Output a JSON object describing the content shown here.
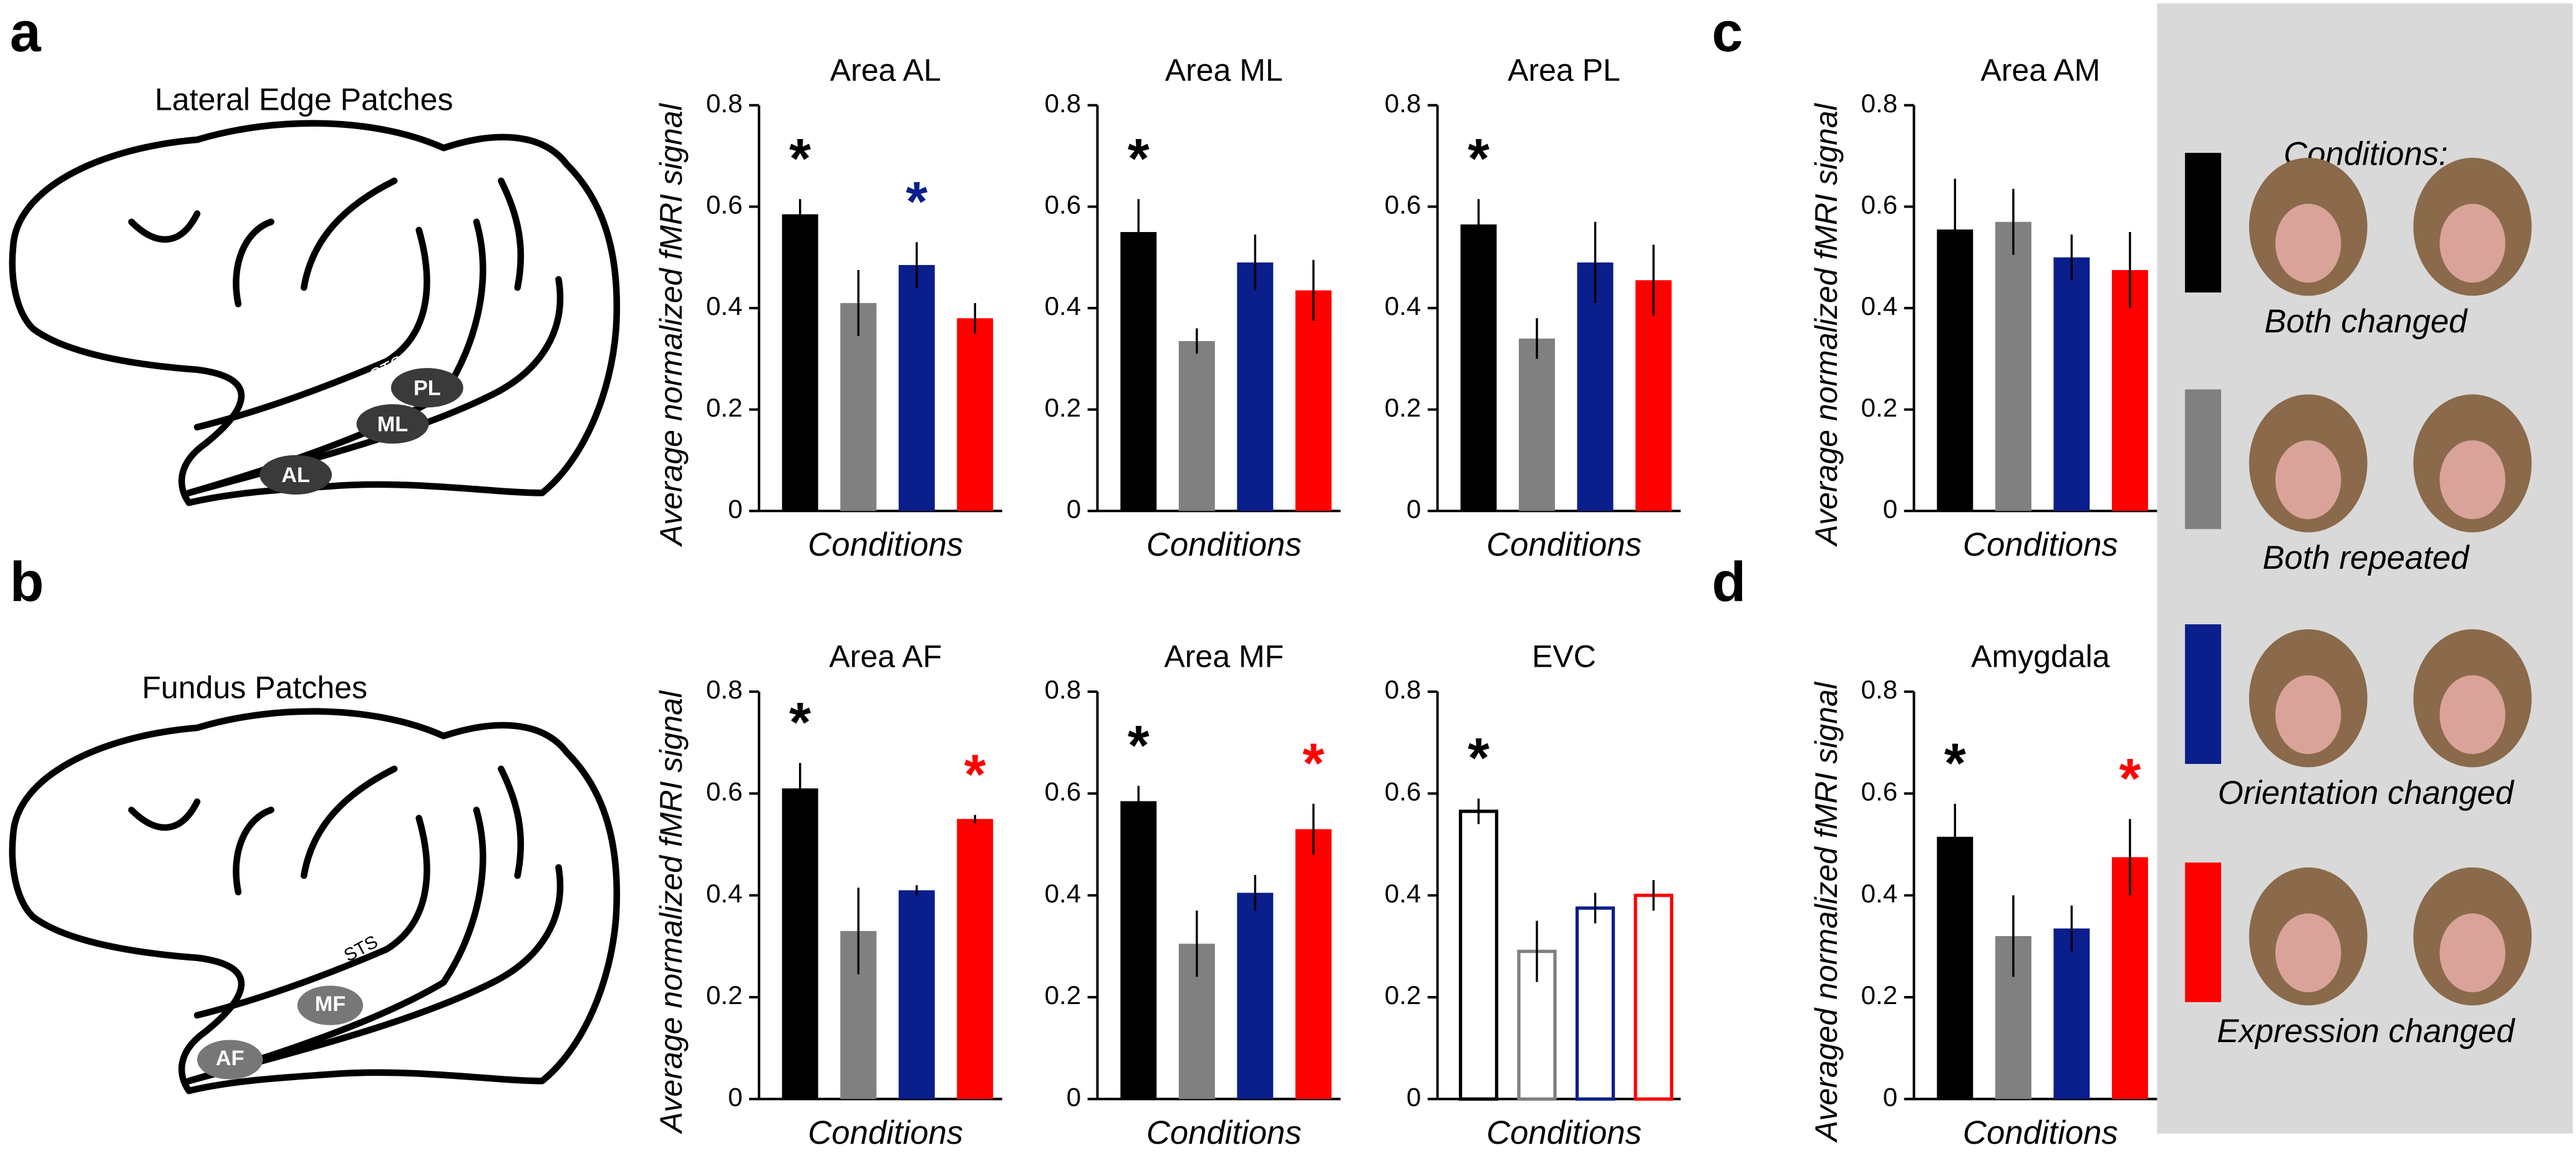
{
  "panel_labels": [
    "a",
    "b",
    "c",
    "d"
  ],
  "diagrams": [
    {
      "title": "Lateral Edge Patches",
      "labels": [
        "STS",
        "PL",
        "ML",
        "AL"
      ]
    },
    {
      "title": "Fundus Patches",
      "labels": [
        "STS",
        "MF",
        "AF"
      ]
    }
  ],
  "chart_data": [
    {
      "type": "bar",
      "title": "Area AL",
      "ylabel": "Average normalized fMRI signal",
      "xlabel": "Conditions",
      "values": [
        0.585,
        0.41,
        0.485,
        0.38
      ],
      "errors": [
        0.03,
        0.065,
        0.045,
        0.03
      ],
      "colors": [
        "#000000",
        "#808080",
        "#0a1e8c",
        "#ff0000"
      ],
      "bar_style": "filled",
      "ylim": [
        0,
        0.8
      ],
      "yticks": [
        0,
        0.2,
        0.4,
        0.6,
        0.8
      ],
      "annotations": [
        {
          "text": "*",
          "color": "#000000",
          "bar": 0
        },
        {
          "text": "*",
          "color": "#0a1e8c",
          "bar": 2
        }
      ]
    },
    {
      "type": "bar",
      "title": "Area ML",
      "xlabel": "Conditions",
      "values": [
        0.55,
        0.335,
        0.49,
        0.435
      ],
      "errors": [
        0.065,
        0.025,
        0.055,
        0.06
      ],
      "colors": [
        "#000000",
        "#808080",
        "#0a1e8c",
        "#ff0000"
      ],
      "bar_style": "filled",
      "ylim": [
        0,
        0.8
      ],
      "yticks": [
        0,
        0.2,
        0.4,
        0.6,
        0.8
      ],
      "annotations": [
        {
          "text": "*",
          "color": "#000000",
          "bar": 0
        }
      ]
    },
    {
      "type": "bar",
      "title": "Area PL",
      "xlabel": "Conditions",
      "values": [
        0.565,
        0.34,
        0.49,
        0.455
      ],
      "errors": [
        0.05,
        0.04,
        0.08,
        0.07
      ],
      "colors": [
        "#000000",
        "#808080",
        "#0a1e8c",
        "#ff0000"
      ],
      "bar_style": "filled",
      "ylim": [
        0,
        0.8
      ],
      "yticks": [
        0,
        0.2,
        0.4,
        0.6,
        0.8
      ],
      "annotations": [
        {
          "text": "*",
          "color": "#000000",
          "bar": 0
        }
      ]
    },
    {
      "type": "bar",
      "title": "Area AM",
      "ylabel": "Average normalized fMRI signal",
      "xlabel": "Conditions",
      "values": [
        0.555,
        0.57,
        0.5,
        0.475
      ],
      "errors": [
        0.1,
        0.065,
        0.045,
        0.075
      ],
      "colors": [
        "#000000",
        "#808080",
        "#0a1e8c",
        "#ff0000"
      ],
      "bar_style": "filled",
      "ylim": [
        0,
        0.8
      ],
      "yticks": [
        0,
        0.2,
        0.4,
        0.6,
        0.8
      ],
      "annotations": []
    },
    {
      "type": "bar",
      "title": "Area AF",
      "ylabel": "Average normalized fMRI signal",
      "xlabel": "Conditions",
      "values": [
        0.61,
        0.33,
        0.41,
        0.55
      ],
      "errors": [
        0.05,
        0.085,
        0.01,
        0.008
      ],
      "colors": [
        "#000000",
        "#808080",
        "#0a1e8c",
        "#ff0000"
      ],
      "bar_style": "filled",
      "ylim": [
        0,
        0.8
      ],
      "yticks": [
        0,
        0.2,
        0.4,
        0.6,
        0.8
      ],
      "annotations": [
        {
          "text": "*",
          "color": "#000000",
          "bar": 0
        },
        {
          "text": "*",
          "color": "#ff0000",
          "bar": 3
        }
      ]
    },
    {
      "type": "bar",
      "title": "Area MF",
      "xlabel": "Conditions",
      "values": [
        0.585,
        0.305,
        0.405,
        0.53
      ],
      "errors": [
        0.03,
        0.065,
        0.035,
        0.05
      ],
      "colors": [
        "#000000",
        "#808080",
        "#0a1e8c",
        "#ff0000"
      ],
      "bar_style": "filled",
      "ylim": [
        0,
        0.8
      ],
      "yticks": [
        0,
        0.2,
        0.4,
        0.6,
        0.8
      ],
      "annotations": [
        {
          "text": "*",
          "color": "#000000",
          "bar": 0
        },
        {
          "text": "*",
          "color": "#ff0000",
          "bar": 3
        }
      ]
    },
    {
      "type": "bar",
      "title": "EVC",
      "xlabel": "Conditions",
      "values": [
        0.565,
        0.29,
        0.375,
        0.4
      ],
      "errors": [
        0.025,
        0.06,
        0.03,
        0.03
      ],
      "colors": [
        "#000000",
        "#808080",
        "#0a1e8c",
        "#ff0000"
      ],
      "bar_style": "outline",
      "ylim": [
        0,
        0.8
      ],
      "yticks": [
        0,
        0.2,
        0.4,
        0.6,
        0.8
      ],
      "annotations": [
        {
          "text": "*",
          "color": "#000000",
          "bar": 0
        }
      ]
    },
    {
      "type": "bar",
      "title": "Amygdala",
      "ylabel": "Averaged normalized fMRI signal",
      "xlabel": "Conditions",
      "values": [
        0.515,
        0.32,
        0.335,
        0.475
      ],
      "errors": [
        0.065,
        0.08,
        0.045,
        0.075
      ],
      "colors": [
        "#000000",
        "#808080",
        "#0a1e8c",
        "#ff0000"
      ],
      "bar_style": "filled",
      "ylim": [
        0,
        0.8
      ],
      "yticks": [
        0,
        0.2,
        0.4,
        0.6,
        0.8
      ],
      "annotations": [
        {
          "text": "*",
          "color": "#000000",
          "bar": 0
        },
        {
          "text": "*",
          "color": "#ff0000",
          "bar": 3
        }
      ]
    }
  ],
  "legend": {
    "title": "Conditions:",
    "items": [
      {
        "label": "Both changed",
        "color": "#000000"
      },
      {
        "label": "Both repeated",
        "color": "#808080"
      },
      {
        "label": "Orientation changed",
        "color": "#0a1e8c"
      },
      {
        "label": "Expression changed",
        "color": "#ff0000"
      }
    ]
  }
}
